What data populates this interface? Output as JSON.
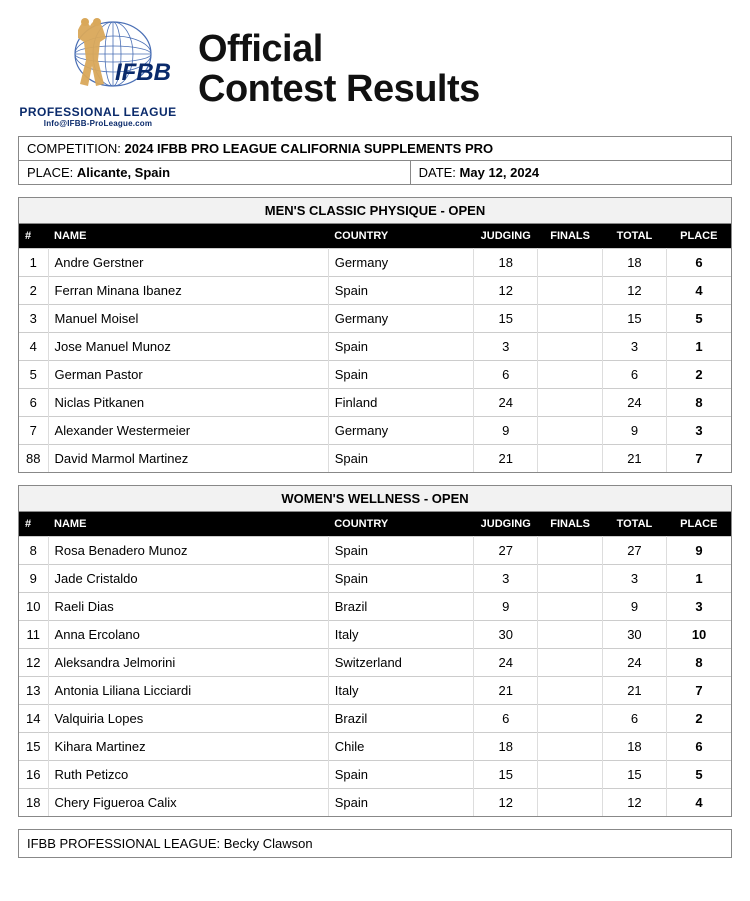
{
  "header": {
    "title_line1": "Official",
    "title_line2": "Contest Results",
    "logo_label": "PROFESSIONAL LEAGUE",
    "logo_email": "Info@IFBB-ProLeague.com",
    "logo_text": "IFBB",
    "globe_color": "#4a6fb5",
    "figure_color": "#d9a85a",
    "label_color": "#0a2a6b"
  },
  "meta": {
    "competition_label": "COMPETITION:",
    "competition_value": "2024 IFBB PRO LEAGUE CALIFORNIA SUPPLEMENTS PRO",
    "place_label": "PLACE:",
    "place_value": "Alicante, Spain",
    "date_label": "DATE:",
    "date_value": "May 12, 2024"
  },
  "columns": {
    "num": "#",
    "name": "NAME",
    "country": "COUNTRY",
    "judging": "JUDGING",
    "finals": "FINALS",
    "total": "TOTAL",
    "place": "PLACE"
  },
  "sections": [
    {
      "title": "MEN'S CLASSIC PHYSIQUE - OPEN",
      "rows": [
        {
          "num": "1",
          "name": "Andre Gerstner",
          "country": "Germany",
          "judging": "18",
          "finals": "",
          "total": "18",
          "place": "6"
        },
        {
          "num": "2",
          "name": "Ferran Minana Ibanez",
          "country": "Spain",
          "judging": "12",
          "finals": "",
          "total": "12",
          "place": "4"
        },
        {
          "num": "3",
          "name": "Manuel Moisel",
          "country": "Germany",
          "judging": "15",
          "finals": "",
          "total": "15",
          "place": "5"
        },
        {
          "num": "4",
          "name": "Jose Manuel Munoz",
          "country": "Spain",
          "judging": "3",
          "finals": "",
          "total": "3",
          "place": "1"
        },
        {
          "num": "5",
          "name": "German Pastor",
          "country": "Spain",
          "judging": "6",
          "finals": "",
          "total": "6",
          "place": "2"
        },
        {
          "num": "6",
          "name": "Niclas Pitkanen",
          "country": "Finland",
          "judging": "24",
          "finals": "",
          "total": "24",
          "place": "8"
        },
        {
          "num": "7",
          "name": "Alexander Westermeier",
          "country": "Germany",
          "judging": "9",
          "finals": "",
          "total": "9",
          "place": "3"
        },
        {
          "num": "88",
          "name": "David Marmol Martinez",
          "country": "Spain",
          "judging": "21",
          "finals": "",
          "total": "21",
          "place": "7"
        }
      ]
    },
    {
      "title": "WOMEN'S WELLNESS - OPEN",
      "rows": [
        {
          "num": "8",
          "name": "Rosa Benadero Munoz",
          "country": "Spain",
          "judging": "27",
          "finals": "",
          "total": "27",
          "place": "9"
        },
        {
          "num": "9",
          "name": "Jade Cristaldo",
          "country": "Spain",
          "judging": "3",
          "finals": "",
          "total": "3",
          "place": "1"
        },
        {
          "num": "10",
          "name": "Raeli Dias",
          "country": "Brazil",
          "judging": "9",
          "finals": "",
          "total": "9",
          "place": "3"
        },
        {
          "num": "11",
          "name": "Anna Ercolano",
          "country": "Italy",
          "judging": "30",
          "finals": "",
          "total": "30",
          "place": "10"
        },
        {
          "num": "12",
          "name": "Aleksandra Jelmorini",
          "country": "Switzerland",
          "judging": "24",
          "finals": "",
          "total": "24",
          "place": "8"
        },
        {
          "num": "13",
          "name": "Antonia Liliana Licciardi",
          "country": "Italy",
          "judging": "21",
          "finals": "",
          "total": "21",
          "place": "7"
        },
        {
          "num": "14",
          "name": "Valquiria Lopes",
          "country": "Brazil",
          "judging": "6",
          "finals": "",
          "total": "6",
          "place": "2"
        },
        {
          "num": "15",
          "name": "Kihara Martinez",
          "country": "Chile",
          "judging": "18",
          "finals": "",
          "total": "18",
          "place": "6"
        },
        {
          "num": "16",
          "name": "Ruth Petizco",
          "country": "Spain",
          "judging": "15",
          "finals": "",
          "total": "15",
          "place": "5"
        },
        {
          "num": "18",
          "name": "Chery Figueroa Calix",
          "country": "Spain",
          "judging": "12",
          "finals": "",
          "total": "12",
          "place": "4"
        }
      ]
    }
  ],
  "footer": {
    "label": "IFBB PROFESSIONAL LEAGUE:",
    "value": "Becky Clawson"
  },
  "style": {
    "header_bg": "#000000",
    "header_fg": "#ffffff",
    "border_color": "#888888",
    "row_border": "#cccccc",
    "section_title_bg": "#f2f2f2",
    "body_font_size": 13
  }
}
